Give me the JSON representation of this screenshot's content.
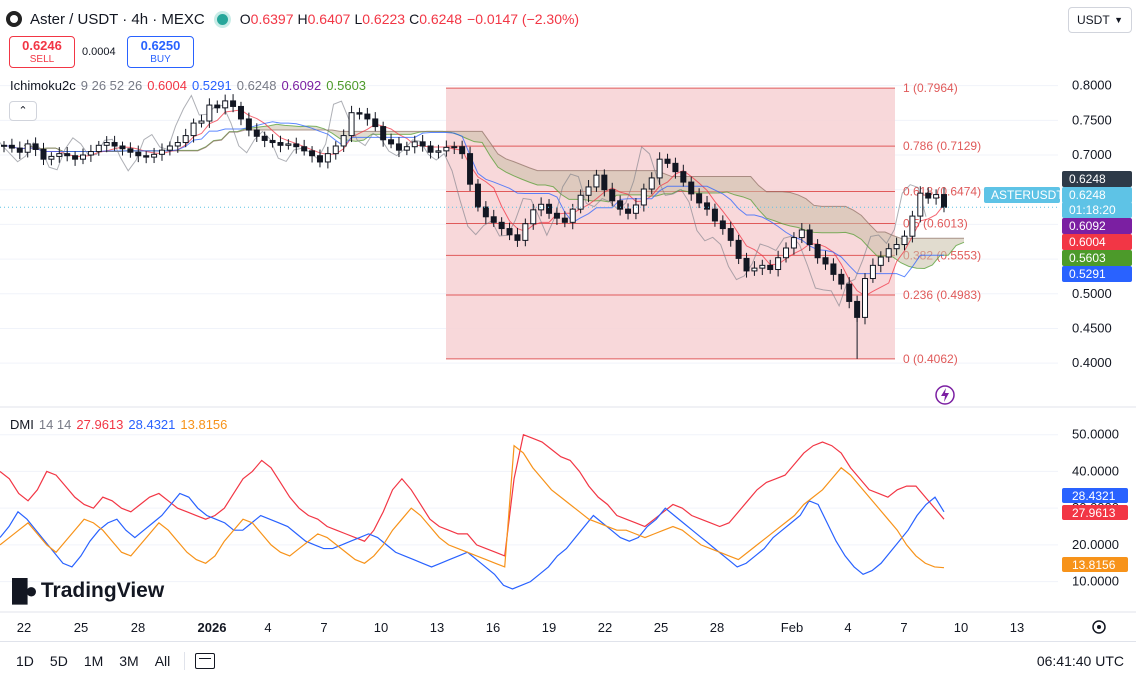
{
  "header": {
    "title": "Aster / USDT · 4h · MEXC",
    "o_label": "O",
    "o_value": "0.6397",
    "h_label": "H",
    "h_value": "0.6407",
    "l_label": "L",
    "l_value": "0.6223",
    "c_label": "C",
    "c_value": "0.6248",
    "change": "−0.0147 (−2.30%)"
  },
  "trade": {
    "sell_price": "0.6246",
    "sell_label": "SELL",
    "buy_price": "0.6250",
    "buy_label": "BUY",
    "spread": "0.0004"
  },
  "currency": "USDT",
  "ichimoku": {
    "name": "Ichimoku2c",
    "params": "9 26 52 26",
    "v1": "0.6004",
    "v2": "0.5291",
    "v3": "0.6248",
    "v4": "0.6092",
    "v5": "0.5603",
    "c1": "#f23645",
    "c2": "#2962ff",
    "c3": "#787b86",
    "c4": "#7b1fa2",
    "c5": "#4c9a2a"
  },
  "dmi": {
    "name": "DMI",
    "params": "14 14",
    "v1": "27.9613",
    "v2": "28.4321",
    "v3": "13.8156"
  },
  "colors": {
    "up": "#ffffff",
    "down": "#131722",
    "fib_line": "#e05a5a",
    "fib_fill": "#f7d1d4",
    "kumo_fill": "#c8bfa8",
    "current_price": "#2e3a48",
    "symbol_tag": "#5ec3e6"
  },
  "brand": "TradingView",
  "bottom_bar": {
    "ranges": [
      "1D",
      "5D",
      "1M",
      "3M",
      "All"
    ],
    "time": "06:41:40 UTC"
  },
  "chart_data": {
    "type": "candlestick",
    "symbol": "ASTERUSDT",
    "timeframe": "4h",
    "price_axis": {
      "ticks": [
        "0.8000",
        "0.7500",
        "0.7000",
        "0.6500",
        "0.6000",
        "0.5500",
        "0.5000",
        "0.4500",
        "0.4000"
      ],
      "range": [
        0.37,
        0.86
      ]
    },
    "x_ticks": [
      "22",
      "25",
      "28",
      "2026",
      "4",
      "7",
      "10",
      "13",
      "16",
      "19",
      "22",
      "25",
      "28",
      "Feb",
      "4",
      "7",
      "10",
      "13"
    ],
    "close_path": [
      0.714,
      0.71,
      0.704,
      0.716,
      0.708,
      0.694,
      0.698,
      0.702,
      0.699,
      0.694,
      0.7,
      0.705,
      0.714,
      0.718,
      0.713,
      0.709,
      0.704,
      0.699,
      0.697,
      0.701,
      0.707,
      0.713,
      0.718,
      0.728,
      0.746,
      0.749,
      0.772,
      0.768,
      0.778,
      0.77,
      0.752,
      0.736,
      0.727,
      0.721,
      0.718,
      0.714,
      0.716,
      0.712,
      0.706,
      0.699,
      0.69,
      0.702,
      0.713,
      0.728,
      0.761,
      0.759,
      0.752,
      0.741,
      0.722,
      0.716,
      0.707,
      0.712,
      0.719,
      0.713,
      0.704,
      0.706,
      0.711,
      0.712,
      0.702,
      0.658,
      0.625,
      0.611,
      0.603,
      0.594,
      0.585,
      0.577,
      0.601,
      0.621,
      0.629,
      0.616,
      0.609,
      0.603,
      0.622,
      0.642,
      0.654,
      0.671,
      0.65,
      0.634,
      0.622,
      0.616,
      0.628,
      0.651,
      0.667,
      0.694,
      0.688,
      0.676,
      0.661,
      0.644,
      0.631,
      0.622,
      0.605,
      0.594,
      0.577,
      0.551,
      0.533,
      0.537,
      0.541,
      0.535,
      0.552,
      0.566,
      0.581,
      0.592,
      0.571,
      0.552,
      0.543,
      0.528,
      0.514,
      0.489,
      0.466,
      0.522,
      0.541,
      0.553,
      0.565,
      0.571,
      0.583,
      0.612,
      0.645,
      0.638,
      0.643,
      0.6248
    ],
    "ichimoku": {
      "tenkan": 0.6004,
      "kijun": 0.5291,
      "chikou": 0.6248,
      "senkou_a": 0.6092,
      "senkou_b": 0.5603
    },
    "fibonacci": [
      {
        "level": "1",
        "price": 0.7964,
        "label": "1 (0.7964)"
      },
      {
        "level": "0.786",
        "price": 0.7129,
        "label": "0.786 (0.7129)"
      },
      {
        "level": "0.618",
        "price": 0.6474,
        "label": "0.618 (0.6474)"
      },
      {
        "level": "0.5",
        "price": 0.6013,
        "label": "0.5 (0.6013)"
      },
      {
        "level": "0.382",
        "price": 0.5553,
        "label": "0.382 (0.5553)"
      },
      {
        "level": "0.236",
        "price": 0.4983,
        "label": "0.236 (0.4983)"
      },
      {
        "level": "0",
        "price": 0.4062,
        "label": "0 (0.4062)"
      }
    ],
    "price_tags": [
      {
        "text": "0.6248",
        "color": "#2e3a48",
        "price": 0.6248
      },
      {
        "text": "ASTERUSDT",
        "color": "#5ec3e6",
        "price": 0.6248
      },
      {
        "text": "0.6248",
        "color": "#5ec3e6",
        "price": 0.6248
      },
      {
        "text": "01:18:20",
        "color": "#5ec3e6",
        "price": 0.6248
      },
      {
        "text": "0.6092",
        "color": "#7b1fa2",
        "price": 0.6092
      },
      {
        "text": "0.6004",
        "color": "#f23645",
        "price": 0.6004
      },
      {
        "text": "0.5603",
        "color": "#4c9a2a",
        "price": 0.5603
      },
      {
        "text": "0.5291",
        "color": "#2962ff",
        "price": 0.5291
      }
    ],
    "dmi": {
      "y_ticks": [
        "50.0000",
        "40.0000",
        "30.0000",
        "20.0000",
        "10.0000"
      ],
      "y_range": [
        5,
        54
      ],
      "adx": 27.9613,
      "plus_di": 28.4321,
      "minus_di": 13.8156,
      "series": [
        {
          "values": [
            40,
            38,
            34,
            32,
            35,
            40,
            39,
            36,
            33,
            31,
            30,
            33,
            32,
            30,
            29,
            31,
            33,
            34,
            32,
            30,
            29,
            28,
            27,
            28,
            30,
            34,
            38,
            40,
            43,
            41,
            37,
            33,
            30,
            28,
            27,
            25,
            24,
            23,
            22,
            21,
            24,
            29,
            35,
            38,
            35,
            31,
            27,
            25,
            24,
            23,
            23,
            20,
            19,
            18,
            17,
            38,
            50,
            49,
            48,
            46,
            44,
            43,
            40,
            36,
            33,
            31,
            28,
            27,
            26,
            25,
            27,
            29,
            31,
            30,
            28,
            27,
            26,
            25,
            26,
            29,
            32,
            35,
            37,
            38,
            39,
            42,
            45,
            47,
            48,
            47,
            45,
            41,
            38,
            35,
            34,
            33,
            35,
            36,
            36,
            33,
            30,
            27
          ],
          "color": "#f23645"
        },
        {
          "values": [
            22,
            25,
            29,
            27,
            24,
            21,
            18,
            15,
            14,
            17,
            21,
            24,
            26,
            27,
            24,
            22,
            24,
            26,
            28,
            31,
            34,
            33,
            30,
            28,
            27,
            26,
            24,
            24,
            26,
            28,
            27,
            26,
            25,
            23,
            21,
            20,
            19,
            19,
            20,
            21,
            22,
            23,
            22,
            20,
            18,
            17,
            16,
            15,
            14,
            15,
            16,
            17,
            18,
            16,
            14,
            12,
            9,
            8,
            9,
            10,
            12,
            14,
            17,
            19,
            22,
            25,
            28,
            26,
            24,
            22,
            21,
            22,
            25,
            27,
            30,
            28,
            26,
            24,
            22,
            20,
            18,
            16,
            14,
            15,
            17,
            19,
            22,
            24,
            26,
            28,
            32,
            31,
            26,
            21,
            17,
            14,
            12,
            13,
            15,
            18,
            21,
            24,
            28,
            31,
            33,
            29
          ],
          "color": "#2962ff"
        },
        {
          "values": [
            20,
            22,
            24,
            26,
            23,
            20,
            18,
            21,
            24,
            27,
            26,
            24,
            21,
            18,
            17,
            20,
            23,
            26,
            24,
            21,
            18,
            16,
            15,
            17,
            21,
            24,
            27,
            26,
            23,
            20,
            18,
            17,
            19,
            21,
            23,
            22,
            20,
            18,
            16,
            15,
            17,
            20,
            24,
            27,
            30,
            28,
            25,
            22,
            20,
            19,
            18,
            17,
            16,
            15,
            14,
            47,
            45,
            41,
            38,
            35,
            33,
            31,
            29,
            27,
            26,
            25,
            24,
            24,
            23,
            22,
            23,
            24,
            25,
            24,
            22,
            20,
            19,
            18,
            17,
            16,
            18,
            20,
            22,
            24,
            26,
            28,
            31,
            33,
            35,
            38,
            41,
            39,
            36,
            33,
            30,
            27,
            24,
            20,
            17,
            15,
            14,
            13.8
          ],
          "color": "#f7931a"
        }
      ]
    }
  }
}
